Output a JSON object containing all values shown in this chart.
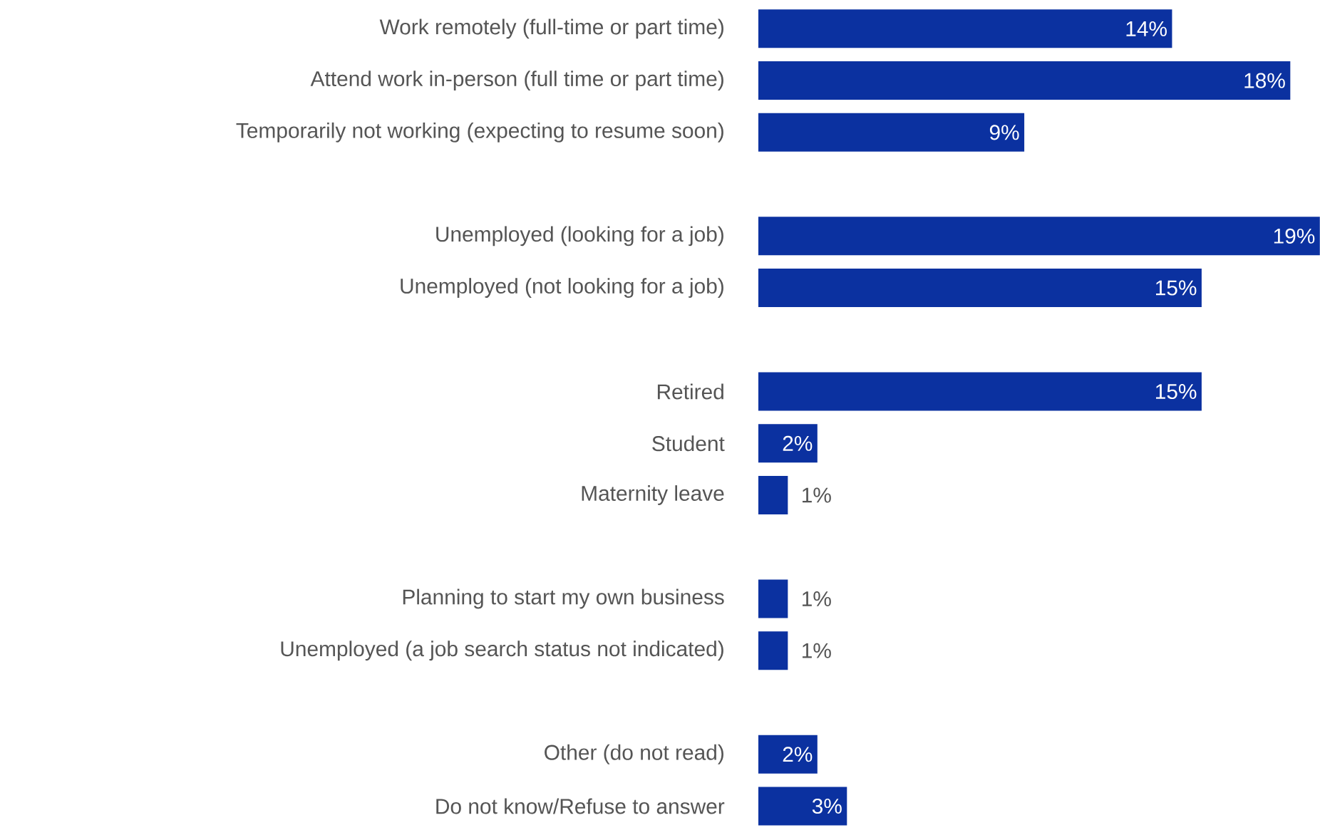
{
  "chart_data": {
    "type": "bar",
    "orientation": "horizontal",
    "color": "#0b31a0",
    "categories": [
      "Work remotely (full-time or part time)",
      "Attend work in-person (full time or part time)",
      "Temporarily not working (expecting to resume soon)",
      null,
      "Unemployed (looking for a job)",
      "Unemployed (not looking for a job)",
      null,
      "Retired",
      "Student",
      "Maternity leave",
      null,
      "Planning to start my own business",
      "Unemployed (a job search status not indicated)",
      null,
      "Other (do not read)",
      "Do not know/Refuse to answer"
    ],
    "values": [
      14,
      18,
      9,
      null,
      19,
      15,
      null,
      15,
      2,
      1,
      null,
      1,
      1,
      null,
      2,
      3
    ],
    "value_labels": [
      "14%",
      "18%",
      "9%",
      null,
      "19%",
      "15%",
      null,
      "15%",
      "2%",
      "1%",
      null,
      "1%",
      "1%",
      null,
      "2%",
      "3%"
    ]
  }
}
